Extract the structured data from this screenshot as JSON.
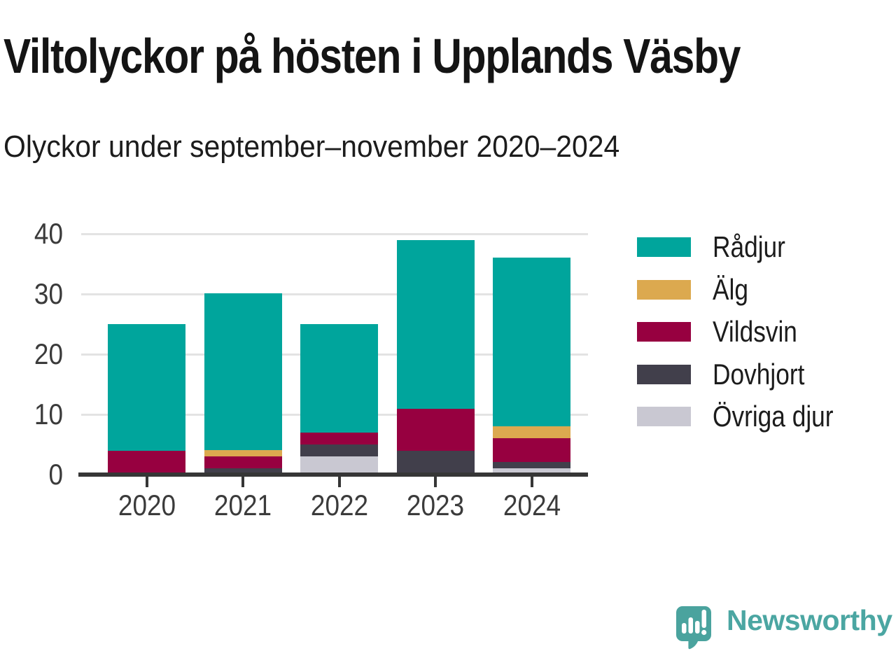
{
  "chart_data": {
    "type": "bar",
    "stacked": true,
    "title": "Viltolyckor på hösten i Upplands Väsby",
    "subtitle": "Olyckor under september–november 2020–2024",
    "categories": [
      "2020",
      "2021",
      "2022",
      "2023",
      "2024"
    ],
    "series": [
      {
        "name": "Rådjur",
        "color": "#00a59c",
        "values": [
          21,
          26,
          18,
          28,
          28
        ]
      },
      {
        "name": "Älg",
        "color": "#dca94f",
        "values": [
          0,
          1,
          0,
          0,
          2
        ]
      },
      {
        "name": "Vildsvin",
        "color": "#970040",
        "values": [
          4,
          2,
          2,
          7,
          4
        ]
      },
      {
        "name": "Dovhjort",
        "color": "#413f4b",
        "values": [
          0,
          1,
          2,
          4,
          1
        ]
      },
      {
        "name": "Övriga djur",
        "color": "#c9c8d2",
        "values": [
          0,
          0,
          3,
          0,
          1
        ]
      }
    ],
    "totals": [
      25,
      30,
      25,
      39,
      36
    ],
    "stack_order_bottom_to_top": [
      "Övriga djur",
      "Dovhjort",
      "Vildsvin",
      "Älg",
      "Rådjur"
    ],
    "ylim": [
      0,
      40
    ],
    "yticks": [
      0,
      10,
      20,
      30,
      40
    ],
    "grid": true,
    "legend_position": "right"
  },
  "branding": {
    "logo_text": "Newsworthy",
    "logo_icon": "bar-chart-speech-bubble-icon",
    "logo_color": "#4aa39e"
  },
  "colors": {
    "gridline": "#e3e3e3",
    "axis": "#363636",
    "tick_label": "#3b3b3b"
  }
}
